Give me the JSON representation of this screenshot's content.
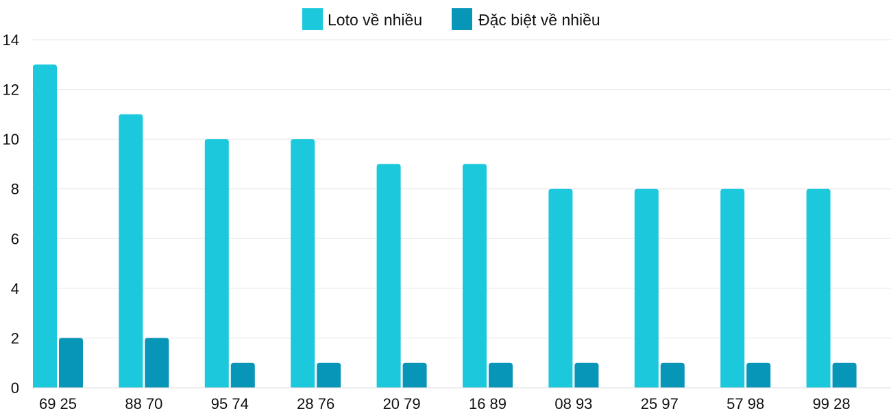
{
  "chart_data": {
    "type": "bar",
    "title": "",
    "xlabel": "",
    "ylabel": "",
    "categories": [
      "69 25",
      "88 70",
      "95 74",
      "28 76",
      "20 79",
      "16 89",
      "08 93",
      "25 97",
      "57 98",
      "99 28"
    ],
    "series": [
      {
        "name": "Loto về nhiều",
        "color": "#1bc8dc",
        "values": [
          13,
          11,
          10,
          10,
          9,
          9,
          8,
          8,
          8,
          8
        ]
      },
      {
        "name": "Đặc biệt về nhiều",
        "color": "#0795b8",
        "values": [
          2,
          2,
          1,
          1,
          1,
          1,
          1,
          1,
          1,
          1
        ]
      }
    ],
    "ylim": [
      0,
      14
    ],
    "yticks": [
      0,
      2,
      4,
      6,
      8,
      10,
      12,
      14
    ],
    "grid": true,
    "legend_position": "top-center"
  }
}
